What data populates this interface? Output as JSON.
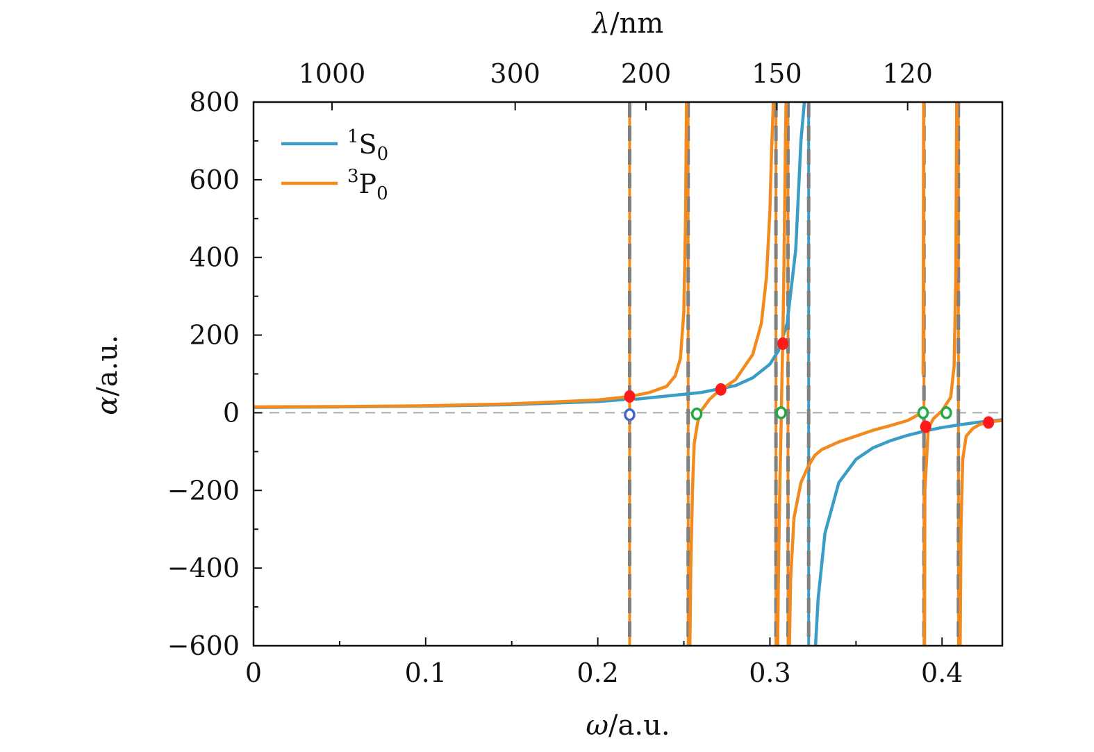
{
  "chart_data": {
    "type": "line",
    "xlabel_italic": "ω",
    "xlabel_unit": "/a.u.",
    "ylabel_italic": "α",
    "ylabel_unit": "/a.u.",
    "top_label_italic": "λ",
    "top_label_unit": "/nm",
    "xlim": [
      0,
      0.435
    ],
    "ylim": [
      -600,
      800
    ],
    "x_ticks": [
      {
        "value": 0,
        "label": "0"
      },
      {
        "value": 0.1,
        "label": "0.1"
      },
      {
        "value": 0.2,
        "label": "0.2"
      },
      {
        "value": 0.3,
        "label": "0.3"
      },
      {
        "value": 0.4,
        "label": "0.4"
      }
    ],
    "y_ticks": [
      {
        "value": 800,
        "label": "800"
      },
      {
        "value": 600,
        "label": "600"
      },
      {
        "value": 400,
        "label": "400"
      },
      {
        "value": 200,
        "label": "200"
      },
      {
        "value": 0,
        "label": "0"
      },
      {
        "value": -200,
        "label": "−200"
      },
      {
        "value": -400,
        "label": "−400"
      },
      {
        "value": -600,
        "label": "−600"
      }
    ],
    "top_ticks": [
      {
        "omega": 0.0456,
        "label": "1000"
      },
      {
        "omega": 0.152,
        "label": "300"
      },
      {
        "omega": 0.228,
        "label": "200"
      },
      {
        "omega": 0.304,
        "label": "150"
      },
      {
        "omega": 0.38,
        "label": "120"
      }
    ],
    "legend": {
      "position": "top-left",
      "entries": [
        {
          "base": "S",
          "pre_sup": "1",
          "sub": "0",
          "color": "#3a9dc5"
        },
        {
          "base": "P",
          "pre_sup": "3",
          "sub": "0",
          "color": "#f28a1e"
        }
      ]
    },
    "resonances_1S0": [
      0.2185,
      0.3225
    ],
    "resonances_3P0": [
      0.2185,
      0.2525,
      0.3035,
      0.3105,
      0.3895,
      0.4095
    ],
    "series": [
      {
        "name": "1S0",
        "color": "#3a9dc5",
        "segments": [
          {
            "x": [
              0,
              0.05,
              0.1,
              0.15,
              0.2,
              0.215
            ],
            "y": [
              14,
              15,
              17,
              21,
              29,
              34
            ]
          },
          {
            "x": [
              0.222,
              0.24,
              0.26,
              0.28,
              0.29,
              0.3,
              0.305,
              0.31,
              0.315,
              0.318,
              0.32
            ],
            "y": [
              35,
              43,
              52,
              70,
              90,
              125,
              160,
              230,
              420,
              700,
              800
            ]
          },
          {
            "x": [
              0.3265,
              0.328,
              0.332,
              0.34,
              0.35,
              0.36,
              0.37,
              0.38,
              0.39,
              0.4,
              0.41,
              0.42,
              0.435
            ],
            "y": [
              -600,
              -480,
              -310,
              -180,
              -120,
              -90,
              -72,
              -58,
              -47,
              -38,
              -31,
              -25,
              -18
            ]
          }
        ]
      },
      {
        "name": "3P0",
        "color": "#f28a1e",
        "segments": [
          {
            "x": [
              0,
              0.05,
              0.1,
              0.15,
              0.2,
              0.215
            ],
            "y": [
              15,
              16,
              18,
              23,
              33,
              40
            ]
          },
          {
            "x": [
              0.222,
              0.23,
              0.24,
              0.245,
              0.248,
              0.25,
              0.251,
              0.2515
            ],
            "y": [
              45,
              52,
              68,
              95,
              140,
              260,
              500,
              800
            ]
          },
          {
            "x": [
              0.2535,
              0.254,
              0.255,
              0.256,
              0.258,
              0.26,
              0.265,
              0.27,
              0.28,
              0.29,
              0.295,
              0.298,
              0.3,
              0.301,
              0.302
            ],
            "y": [
              -600,
              -400,
              -200,
              -80,
              -25,
              5,
              35,
              55,
              85,
              150,
              230,
              350,
              520,
              680,
              800
            ]
          },
          {
            "x": [
              0.3045,
              0.305,
              0.3058,
              0.3065,
              0.307,
              0.3075,
              0.308,
              0.3085,
              0.309,
              0.3094
            ],
            "y": [
              -600,
              -400,
              -180,
              -30,
              90,
              190,
              330,
              500,
              700,
              800
            ]
          },
          {
            "x": [
              0.3113,
              0.312,
              0.314,
              0.318,
              0.322,
              0.326,
              0.33,
              0.34,
              0.35,
              0.36,
              0.37,
              0.38,
              0.385,
              0.3885
            ],
            "y": [
              -600,
              -430,
              -270,
              -180,
              -140,
              -110,
              -95,
              -75,
              -60,
              -45,
              -33,
              -20,
              -8,
              0
            ]
          },
          {
            "x": [
              0.389,
              0.3891,
              0.3893
            ],
            "y": [
              100,
              400,
              800
            ]
          },
          {
            "x": [
              0.3898,
              0.39,
              0.392,
              0.395,
              0.4,
              0.405,
              0.407,
              0.408,
              0.4085
            ],
            "y": [
              -600,
              -200,
              -40,
              -15,
              5,
              40,
              120,
              350,
              800
            ]
          },
          {
            "x": [
              0.4105,
              0.411,
              0.412,
              0.414,
              0.418,
              0.422,
              0.426,
              0.43,
              0.435
            ],
            "y": [
              -600,
              -300,
              -120,
              -60,
              -40,
              -30,
              -25,
              -22,
              -20
            ]
          }
        ]
      }
    ],
    "zero_line": 0,
    "magic_points_filled": [
      {
        "x": 0.2185,
        "y": 42
      },
      {
        "x": 0.2715,
        "y": 60
      },
      {
        "x": 0.3075,
        "y": 178
      },
      {
        "x": 0.3905,
        "y": -36
      },
      {
        "x": 0.427,
        "y": -25
      }
    ],
    "zero_points_open_1S0": [
      {
        "x": 0.2185,
        "y": -5
      }
    ],
    "zero_points_open_3P0": [
      {
        "x": 0.2575,
        "y": -3
      },
      {
        "x": 0.3065,
        "y": 0
      },
      {
        "x": 0.389,
        "y": 0
      },
      {
        "x": 0.4025,
        "y": 0
      }
    ],
    "colors": {
      "point_filled": "#ff1a1a",
      "point_open_1S0": "#4466cc",
      "point_open_3P0": "#22aa44",
      "resonance_line": "#808080",
      "zero_line": "#aaaaaa"
    }
  }
}
